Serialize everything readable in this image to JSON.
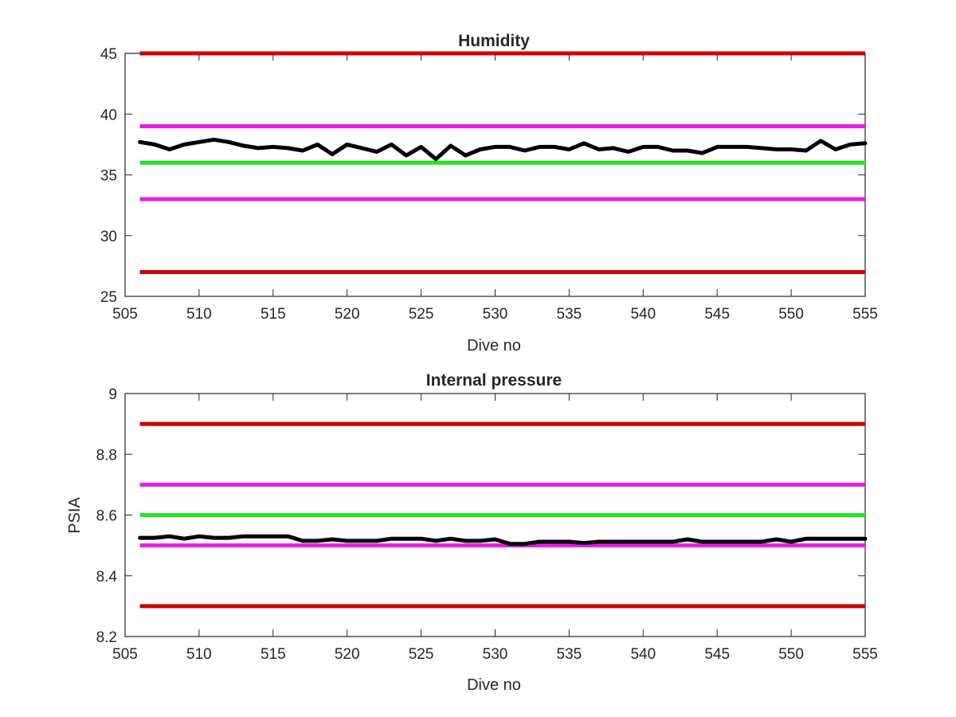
{
  "chart_data": [
    {
      "type": "line",
      "title": "Humidity",
      "xlabel": "Dive no",
      "ylabel": "",
      "xlim": [
        505,
        555
      ],
      "ylim": [
        25,
        45
      ],
      "xticks": [
        505,
        510,
        515,
        520,
        525,
        530,
        535,
        540,
        545,
        550,
        555
      ],
      "yticks": [
        25,
        30,
        35,
        40,
        45
      ],
      "grid": false,
      "threshold_lines": [
        {
          "y": 45,
          "color": "#cc0000"
        },
        {
          "y": 39,
          "color": "#e61ee6"
        },
        {
          "y": 36,
          "color": "#22e622"
        },
        {
          "y": 33,
          "color": "#e61ee6"
        },
        {
          "y": 27,
          "color": "#cc0000"
        }
      ],
      "series": [
        {
          "color": "#000000",
          "x": [
            506,
            507,
            508,
            509,
            510,
            511,
            512,
            513,
            514,
            515,
            516,
            517,
            518,
            519,
            520,
            521,
            522,
            523,
            524,
            525,
            526,
            527,
            528,
            529,
            530,
            531,
            532,
            533,
            534,
            535,
            536,
            537,
            538,
            539,
            540,
            541,
            542,
            543,
            544,
            545,
            546,
            547,
            548,
            549,
            550,
            551,
            552,
            553,
            554,
            555
          ],
          "y": [
            37.7,
            37.5,
            37.1,
            37.5,
            37.7,
            37.9,
            37.7,
            37.4,
            37.2,
            37.3,
            37.2,
            37.0,
            37.5,
            36.7,
            37.5,
            37.2,
            36.9,
            37.5,
            36.6,
            37.3,
            36.3,
            37.4,
            36.6,
            37.1,
            37.3,
            37.3,
            37.0,
            37.3,
            37.3,
            37.1,
            37.6,
            37.1,
            37.2,
            36.9,
            37.3,
            37.3,
            37.0,
            37.0,
            36.8,
            37.3,
            37.3,
            37.3,
            37.2,
            37.1,
            37.1,
            37.0,
            37.8,
            37.1,
            37.5,
            37.6
          ]
        }
      ]
    },
    {
      "type": "line",
      "title": "Internal pressure",
      "xlabel": "Dive no",
      "ylabel": "PSIA",
      "xlim": [
        505,
        555
      ],
      "ylim": [
        8.2,
        9
      ],
      "xticks": [
        505,
        510,
        515,
        520,
        525,
        530,
        535,
        540,
        545,
        550,
        555
      ],
      "yticks": [
        8.2,
        8.4,
        8.6,
        8.8,
        9
      ],
      "ytick_labels": [
        "8.2",
        "8.4",
        "8.6",
        "8.8",
        "9"
      ],
      "grid": false,
      "threshold_lines": [
        {
          "y": 8.9,
          "color": "#cc0000"
        },
        {
          "y": 8.7,
          "color": "#e61ee6"
        },
        {
          "y": 8.6,
          "color": "#22e622"
        },
        {
          "y": 8.5,
          "color": "#e61ee6"
        },
        {
          "y": 8.3,
          "color": "#cc0000"
        }
      ],
      "series": [
        {
          "color": "#000000",
          "x": [
            506,
            507,
            508,
            509,
            510,
            511,
            512,
            513,
            514,
            515,
            516,
            517,
            518,
            519,
            520,
            521,
            522,
            523,
            524,
            525,
            526,
            527,
            528,
            529,
            530,
            531,
            532,
            533,
            534,
            535,
            536,
            537,
            538,
            539,
            540,
            541,
            542,
            543,
            544,
            545,
            546,
            547,
            548,
            549,
            550,
            551,
            552,
            553,
            554,
            555
          ],
          "y": [
            8.525,
            8.525,
            8.53,
            8.522,
            8.53,
            8.525,
            8.525,
            8.53,
            8.53,
            8.53,
            8.53,
            8.515,
            8.515,
            8.52,
            8.515,
            8.515,
            8.515,
            8.522,
            8.522,
            8.522,
            8.515,
            8.522,
            8.515,
            8.515,
            8.52,
            8.505,
            8.505,
            8.512,
            8.512,
            8.512,
            8.508,
            8.512,
            8.512,
            8.512,
            8.512,
            8.512,
            8.512,
            8.52,
            8.512,
            8.512,
            8.512,
            8.512,
            8.512,
            8.52,
            8.512,
            8.522,
            8.522,
            8.522,
            8.522,
            8.522
          ]
        }
      ]
    }
  ]
}
